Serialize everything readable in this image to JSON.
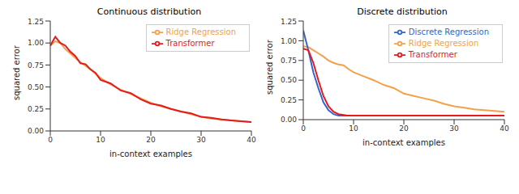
{
  "chart_data": [
    {
      "type": "line",
      "title": "Continuous distribution",
      "xlabel": "in-context examples",
      "ylabel": "squared error",
      "x": [
        0,
        1,
        2,
        3,
        4,
        5,
        6,
        7,
        8,
        9,
        10,
        12,
        14,
        16,
        18,
        20,
        22,
        24,
        26,
        28,
        30,
        32,
        34,
        36,
        38,
        40
      ],
      "xlim": [
        0,
        40
      ],
      "xticks": [
        0,
        10,
        20,
        30,
        40
      ],
      "ylim": [
        0,
        1.25
      ],
      "yticks": [
        {
          "value": 0,
          "label": "0.00"
        },
        {
          "value": 0.25,
          "label": "0.25"
        },
        {
          "value": 0.5,
          "label": "0.50"
        },
        {
          "value": 0.75,
          "label": "0.75"
        },
        {
          "value": 1,
          "label": "1.00"
        },
        {
          "value": 1.25,
          "label": "1.25"
        }
      ],
      "grid": false,
      "legend": "upper right",
      "series": [
        {
          "name": "Ridge Regression",
          "color": "#f5a04a",
          "values": [
            0.97,
            1.02,
            1.0,
            0.93,
            0.88,
            0.83,
            0.78,
            0.74,
            0.7,
            0.65,
            0.6,
            0.53,
            0.47,
            0.42,
            0.37,
            0.32,
            0.28,
            0.25,
            0.22,
            0.19,
            0.16,
            0.14,
            0.13,
            0.12,
            0.11,
            0.1
          ]
        },
        {
          "name": "Transformer",
          "color": "#e41a1c",
          "values": [
            0.97,
            1.07,
            1.0,
            0.97,
            0.9,
            0.85,
            0.77,
            0.76,
            0.7,
            0.66,
            0.58,
            0.54,
            0.46,
            0.43,
            0.36,
            0.31,
            0.29,
            0.25,
            0.22,
            0.2,
            0.16,
            0.15,
            0.13,
            0.12,
            0.11,
            0.1
          ]
        }
      ]
    },
    {
      "type": "line",
      "title": "Discrete distribution",
      "xlabel": "in-context examples",
      "ylabel": "squared error",
      "x": [
        0,
        1,
        2,
        3,
        4,
        5,
        6,
        7,
        8,
        9,
        10,
        12,
        14,
        16,
        18,
        20,
        22,
        24,
        26,
        28,
        30,
        32,
        34,
        36,
        38,
        40
      ],
      "xlim": [
        0,
        40
      ],
      "xticks": [
        0,
        10,
        20,
        30,
        40
      ],
      "ylim": [
        0,
        1.25
      ],
      "yticks": [
        {
          "value": 0,
          "label": "0.00"
        },
        {
          "value": 0.25,
          "label": "0.25"
        },
        {
          "value": 0.5,
          "label": "0.50"
        },
        {
          "value": 0.75,
          "label": "0.75"
        },
        {
          "value": 1,
          "label": "1.00"
        },
        {
          "value": 1.25,
          "label": "1.25"
        }
      ],
      "grid": false,
      "legend": "upper right",
      "series": [
        {
          "name": "Ridge Regression",
          "color": "#f5a04a",
          "values": [
            0.93,
            0.92,
            0.88,
            0.84,
            0.8,
            0.75,
            0.72,
            0.7,
            0.69,
            0.64,
            0.6,
            0.55,
            0.5,
            0.44,
            0.4,
            0.33,
            0.3,
            0.27,
            0.24,
            0.2,
            0.17,
            0.15,
            0.13,
            0.12,
            0.11,
            0.1
          ]
        },
        {
          "name": "Discrete Regression",
          "color": "#3366cc",
          "values": [
            1.13,
            0.88,
            0.6,
            0.4,
            0.22,
            0.12,
            0.07,
            0.05,
            0.05,
            0.05,
            0.05,
            0.05,
            0.05,
            0.05,
            0.05,
            0.05,
            0.05,
            0.05,
            0.05,
            0.05,
            0.05,
            0.05,
            0.05,
            0.05,
            0.05,
            0.05
          ]
        },
        {
          "name": "Transformer",
          "color": "#e41a1c",
          "values": [
            0.9,
            0.88,
            0.72,
            0.5,
            0.3,
            0.17,
            0.1,
            0.07,
            0.06,
            0.05,
            0.05,
            0.05,
            0.05,
            0.05,
            0.05,
            0.05,
            0.05,
            0.05,
            0.05,
            0.05,
            0.05,
            0.05,
            0.05,
            0.05,
            0.05,
            0.05
          ]
        }
      ]
    }
  ]
}
